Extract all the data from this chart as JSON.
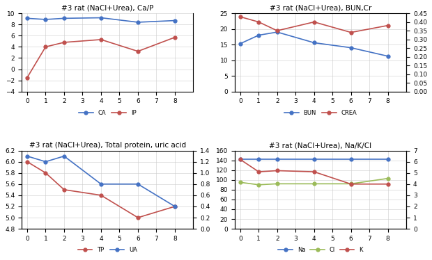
{
  "title_ca_p": "#3 rat (NaCl+Urea), Ca/P",
  "title_bun_cr": "#3 rat (NaCl+Urea), BUN,Cr",
  "title_tp_ua": "#3 rat (NaCl+Urea), Total protein, uric acid",
  "title_na_k_cl": "#3 rat (NaCl+Urea), Na/K/Cl",
  "x": [
    0,
    1,
    2,
    4,
    6,
    8
  ],
  "CA": [
    9.1,
    8.9,
    9.1,
    9.2,
    8.4,
    8.7
  ],
  "IP": [
    -1.5,
    4.0,
    4.8,
    5.3,
    3.2,
    5.7
  ],
  "BUN": [
    15.3,
    18.0,
    19.0,
    15.6,
    14.0,
    11.3
  ],
  "CREA": [
    0.43,
    0.4,
    0.35,
    0.4,
    0.34,
    0.38
  ],
  "TP": [
    6.0,
    5.8,
    5.5,
    5.4,
    5.0,
    5.2
  ],
  "UA": [
    1.3,
    1.2,
    1.3,
    0.8,
    0.8,
    0.4
  ],
  "Na": [
    142,
    142,
    142,
    142,
    142,
    142
  ],
  "Cl": [
    95,
    90,
    92,
    92,
    92,
    103
  ],
  "K": [
    6.2,
    5.1,
    5.2,
    5.1,
    4.0,
    4.0
  ],
  "color_blue": "#4472c4",
  "color_red": "#c0504d",
  "color_green": "#9bbb59",
  "ca_ylim": [
    -4,
    10
  ],
  "ca_yticks": [
    -4,
    -2,
    0,
    2,
    4,
    6,
    8,
    10
  ],
  "bun_ylim": [
    0,
    25
  ],
  "bun_yticks": [
    0,
    5,
    10,
    15,
    20,
    25
  ],
  "bun_y2lim": [
    0,
    0.45
  ],
  "bun_y2ticks": [
    0,
    0.05,
    0.1,
    0.15,
    0.2,
    0.25,
    0.3,
    0.35,
    0.4,
    0.45
  ],
  "tp_ylim": [
    4.8,
    6.2
  ],
  "tp_yticks": [
    4.8,
    5.0,
    5.2,
    5.4,
    5.6,
    5.8,
    6.0,
    6.2
  ],
  "tp_y2lim": [
    0,
    1.4
  ],
  "tp_y2ticks": [
    0,
    0.2,
    0.4,
    0.6,
    0.8,
    1.0,
    1.2,
    1.4
  ],
  "na_ylim": [
    0,
    160
  ],
  "na_yticks": [
    0,
    20,
    40,
    60,
    80,
    100,
    120,
    140,
    160
  ],
  "na_y2lim": [
    0,
    7
  ],
  "na_y2ticks": [
    0,
    1,
    2,
    3,
    4,
    5,
    6,
    7
  ],
  "x_ticks": [
    0,
    1,
    2,
    3,
    4,
    5,
    6,
    7,
    8
  ],
  "x_lim": [
    -0.3,
    9
  ]
}
